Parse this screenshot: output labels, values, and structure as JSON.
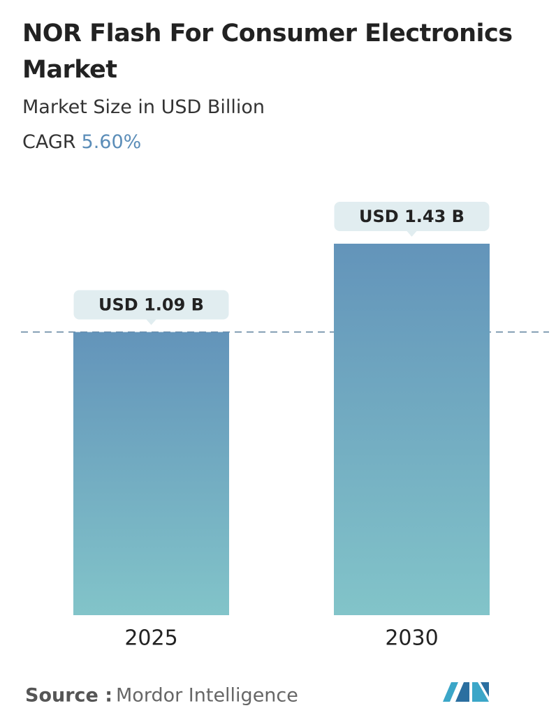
{
  "chart_data": {
    "type": "bar",
    "title": "NOR Flash For Consumer Electronics Market",
    "subtitle": "Market Size in USD Billion",
    "cagr_label": "CAGR",
    "cagr_value": "5.60%",
    "categories": [
      "2025",
      "2030"
    ],
    "values": [
      1.09,
      1.43
    ],
    "value_labels": [
      "USD 1.09 B",
      "USD 1.43 B"
    ],
    "color_top": "#6394ba",
    "color_bottom": "#82c4c9",
    "source_label": "Source :",
    "source": "Mordor Intelligence"
  }
}
